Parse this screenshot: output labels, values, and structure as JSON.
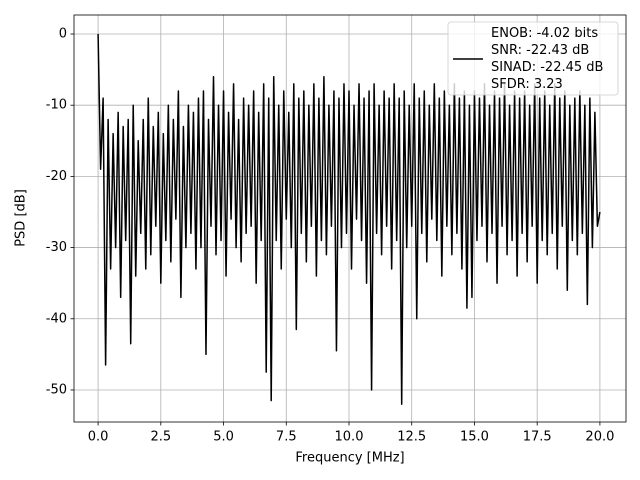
{
  "chart_data": {
    "type": "line",
    "xlabel": "Frequency [MHz]",
    "ylabel": "PSD [dB]",
    "xlim": [
      -0.96,
      21.04
    ],
    "ylim": [
      -54.5,
      2.67
    ],
    "xticks": [
      {
        "value": 0,
        "label": "0.0"
      },
      2.5,
      {
        "value": 5,
        "label": "5.0"
      },
      7.5,
      {
        "value": 10,
        "label": "10.0"
      },
      12.5,
      {
        "value": 15,
        "label": "15.0"
      },
      17.5,
      {
        "value": 20,
        "label": "20.0"
      }
    ],
    "yticks": [
      0,
      -10,
      -20,
      -30,
      -40,
      -50
    ],
    "grid": true,
    "legend": "upper right",
    "x": [
      0,
      0.1,
      0.2,
      0.3,
      0.4,
      0.5,
      0.6,
      0.7,
      0.8,
      0.9,
      1,
      1.1,
      1.2,
      1.3,
      1.4,
      1.5,
      1.6,
      1.7,
      1.8,
      1.9,
      2,
      2.1,
      2.2,
      2.3,
      2.4,
      2.5,
      2.6,
      2.7,
      2.8,
      2.9,
      3,
      3.1,
      3.2,
      3.3,
      3.4,
      3.5,
      3.6,
      3.7,
      3.8,
      3.9,
      4,
      4.1,
      4.2,
      4.3,
      4.4,
      4.5,
      4.6,
      4.7,
      4.8,
      4.9,
      5,
      5.1,
      5.2,
      5.3,
      5.4,
      5.5,
      5.6,
      5.7,
      5.8,
      5.9,
      6,
      6.1,
      6.2,
      6.3,
      6.4,
      6.5,
      6.6,
      6.7,
      6.8,
      6.9,
      7,
      7.1,
      7.2,
      7.3,
      7.4,
      7.5,
      7.6,
      7.7,
      7.8,
      7.9,
      8,
      8.1,
      8.2,
      8.3,
      8.4,
      8.5,
      8.6,
      8.7,
      8.8,
      8.9,
      9,
      9.1,
      9.2,
      9.3,
      9.4,
      9.5,
      9.6,
      9.7,
      9.8,
      9.9,
      10,
      10.1,
      10.2,
      10.3,
      10.4,
      10.5,
      10.6,
      10.7,
      10.8,
      10.9,
      11,
      11.1,
      11.2,
      11.3,
      11.4,
      11.5,
      11.6,
      11.7,
      11.8,
      11.9,
      12,
      12.1,
      12.2,
      12.3,
      12.4,
      12.5,
      12.6,
      12.7,
      12.8,
      12.9,
      13,
      13.1,
      13.2,
      13.3,
      13.4,
      13.5,
      13.6,
      13.7,
      13.8,
      13.9,
      14,
      14.1,
      14.2,
      14.3,
      14.4,
      14.5,
      14.6,
      14.7,
      14.8,
      14.9,
      15,
      15.1,
      15.2,
      15.3,
      15.4,
      15.5,
      15.6,
      15.7,
      15.8,
      15.9,
      16,
      16.1,
      16.2,
      16.3,
      16.4,
      16.5,
      16.6,
      16.7,
      16.8,
      16.9,
      17,
      17.1,
      17.2,
      17.3,
      17.4,
      17.5,
      17.6,
      17.7,
      17.8,
      17.9,
      18,
      18.1,
      18.2,
      18.3,
      18.4,
      18.5,
      18.6,
      18.7,
      18.8,
      18.9,
      19,
      19.1,
      19.2,
      19.3,
      19.4,
      19.5,
      19.6,
      19.7,
      19.8,
      19.9,
      20
    ],
    "series": [
      {
        "name": "ENOB: -4.02 bits\nSNR: -22.43 dB\nSINAD: -22.45 dB\nSFDR: 3.23",
        "color": "#000000",
        "values": [
          0,
          -19,
          -9,
          -46.5,
          -12,
          -33,
          -14,
          -30,
          -11,
          -37,
          -13,
          -29,
          -12,
          -43.5,
          -10,
          -34,
          -15,
          -28,
          -12,
          -33,
          -9,
          -31,
          -13,
          -27,
          -11,
          -35,
          -14,
          -29,
          -10,
          -32,
          -12,
          -26,
          -8,
          -37,
          -13,
          -30,
          -10,
          -28,
          -11,
          -33,
          -9,
          -30,
          -8,
          -45,
          -12,
          -27,
          -6,
          -31,
          -10,
          -29,
          -8,
          -34,
          -11,
          -26,
          -7,
          -30,
          -12,
          -32,
          -9,
          -28,
          -10,
          -27,
          -8,
          -35,
          -11,
          -29,
          -7,
          -47.5,
          -9,
          -51.5,
          -6,
          -29,
          -10,
          -33,
          -8,
          -26,
          -11,
          -30,
          -7,
          -41.5,
          -9,
          -28,
          -8,
          -32,
          -10,
          -27,
          -7,
          -34,
          -9,
          -29,
          -6,
          -31,
          -10,
          -27,
          -8,
          -44.5,
          -9,
          -30,
          -7,
          -28,
          -8,
          -33,
          -10,
          -26,
          -7,
          -29,
          -9,
          -35,
          -8,
          -50,
          -7,
          -28,
          -10,
          -31,
          -8,
          -27,
          -9,
          -33,
          -7,
          -29,
          -9,
          -52,
          -8,
          -30,
          -10,
          -27,
          -7,
          -40,
          -9,
          -28,
          -8,
          -32,
          -10,
          -26,
          -7,
          -29,
          -9,
          -34,
          -8,
          -27,
          -10,
          -31,
          -7,
          -28,
          -9,
          -33,
          -8,
          -38.5,
          -10,
          -37,
          -8,
          -29,
          -9,
          -27,
          -7,
          -32,
          -10,
          -28,
          -8,
          -35,
          -9,
          -27,
          -7,
          -31,
          -10,
          -29,
          -8,
          -34,
          -9,
          -28,
          -8,
          -32,
          -10,
          -27,
          -7,
          -35,
          -9,
          -29,
          -8,
          -31,
          -10,
          -28,
          -7,
          -33,
          -9,
          -27,
          -8,
          -36,
          -10,
          -29,
          -9,
          -31,
          -8,
          -28,
          -10,
          -38,
          -9,
          -30,
          -11,
          -27,
          -25
        ]
      }
    ]
  }
}
